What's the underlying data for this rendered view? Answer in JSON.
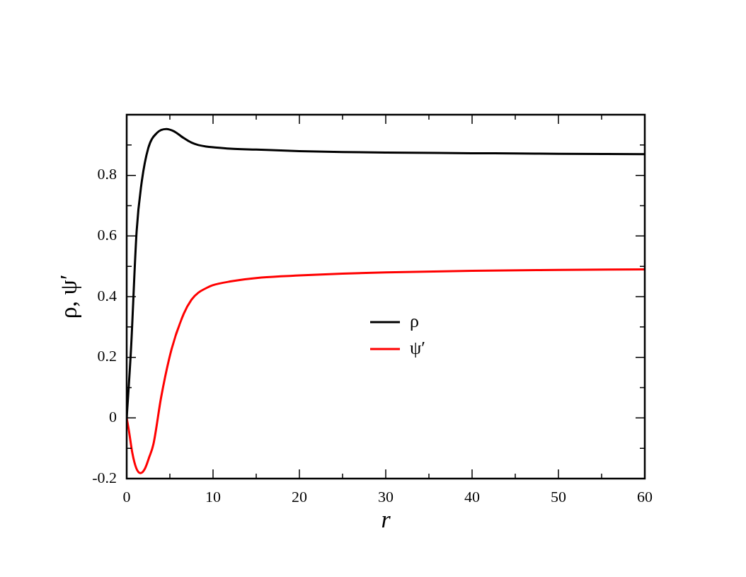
{
  "chart_data": {
    "type": "line",
    "xlabel": "r",
    "ylabel": "ρ, ψ′",
    "xlim": [
      0,
      60
    ],
    "ylim": [
      -0.2,
      1.0
    ],
    "xticks": [
      0,
      {
        "value": 5,
        "label": null
      },
      10,
      {
        "value": 15,
        "label": null
      },
      20,
      {
        "value": 25,
        "label": null
      },
      30,
      {
        "value": 35,
        "label": null
      },
      40,
      {
        "value": 45,
        "label": null
      },
      50,
      {
        "value": 55,
        "label": null
      },
      60
    ],
    "yticks": [
      -0.2,
      {
        "value": -0.1,
        "label": null
      },
      0,
      {
        "value": 0.1,
        "label": null
      },
      0.2,
      {
        "value": 0.3,
        "label": null
      },
      0.4,
      {
        "value": 0.5,
        "label": null
      },
      0.6,
      {
        "value": 0.7,
        "label": null
      },
      0.8,
      {
        "value": 0.9,
        "label": null
      }
    ],
    "grid": false,
    "legend": "center",
    "marker": "none",
    "line_style": "solid",
    "series": [
      {
        "name": "ρ",
        "color": "#000000",
        "x": [
          0,
          0.5,
          1.15,
          1.7,
          2.5,
          3.5,
          4.6,
          5.5,
          6.5,
          7.5,
          8.3,
          9.2,
          10.2,
          12,
          15,
          20,
          25,
          30,
          40,
          45,
          50,
          60
        ],
        "values": [
          0,
          0.227,
          0.615,
          0.77,
          0.89,
          0.94,
          0.953,
          0.945,
          0.925,
          0.908,
          0.9,
          0.895,
          0.892,
          0.888,
          0.885,
          0.88,
          0.877,
          0.875,
          0.873,
          0.872,
          0.871,
          0.87
        ]
      },
      {
        "name": "ψ′",
        "color": "#ff0000",
        "x": [
          0,
          0.3,
          0.65,
          1.1,
          1.6,
          2.1,
          2.6,
          3.1,
          4.0,
          5.2,
          6.6,
          7.5,
          8.3,
          9.2,
          9.9,
          12,
          15.6,
          20,
          25,
          30,
          40,
          50,
          60
        ],
        "values": [
          0,
          -0.05,
          -0.115,
          -0.165,
          -0.182,
          -0.168,
          -0.13,
          -0.086,
          0.07,
          0.227,
          0.343,
          0.39,
          0.413,
          0.428,
          0.437,
          0.45,
          0.463,
          0.47,
          0.476,
          0.48,
          0.485,
          0.488,
          0.49
        ]
      }
    ]
  }
}
